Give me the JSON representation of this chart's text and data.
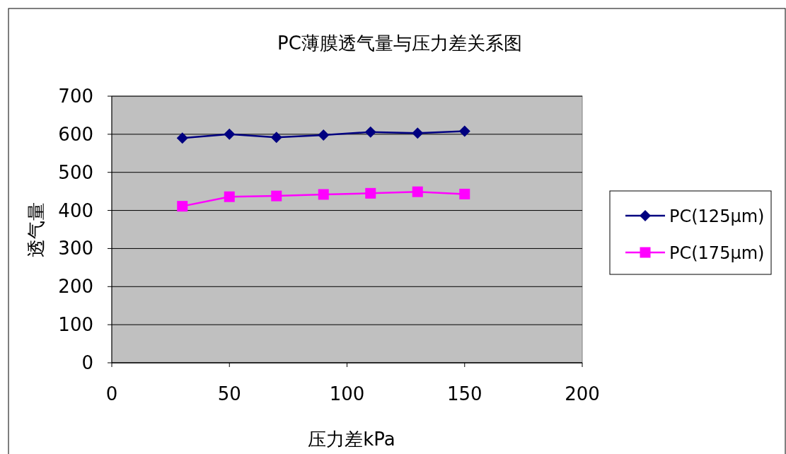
{
  "chart_data": {
    "type": "line",
    "title": "PC薄膜透气量与压力差关系图",
    "xlabel": "压力差kPa",
    "ylabel": "透气量",
    "x": [
      30,
      50,
      70,
      90,
      110,
      130,
      150
    ],
    "series": [
      {
        "name": "PC(125μm)",
        "color": "#000080",
        "marker": "diamond",
        "values": [
          590,
          600,
          592,
          598,
          606,
          603,
          608
        ]
      },
      {
        "name": "PC(175μm)",
        "color": "#ff00ff",
        "marker": "square",
        "values": [
          411,
          436,
          438,
          442,
          445,
          449,
          443
        ]
      }
    ],
    "xlim": [
      0,
      200
    ],
    "xticks": [
      0,
      50,
      100,
      150,
      200
    ],
    "ylim": [
      0,
      700
    ],
    "yticks": [
      0,
      100,
      200,
      300,
      400,
      500,
      600,
      700
    ],
    "grid": "y",
    "legend": "right",
    "line_style": "solid"
  }
}
